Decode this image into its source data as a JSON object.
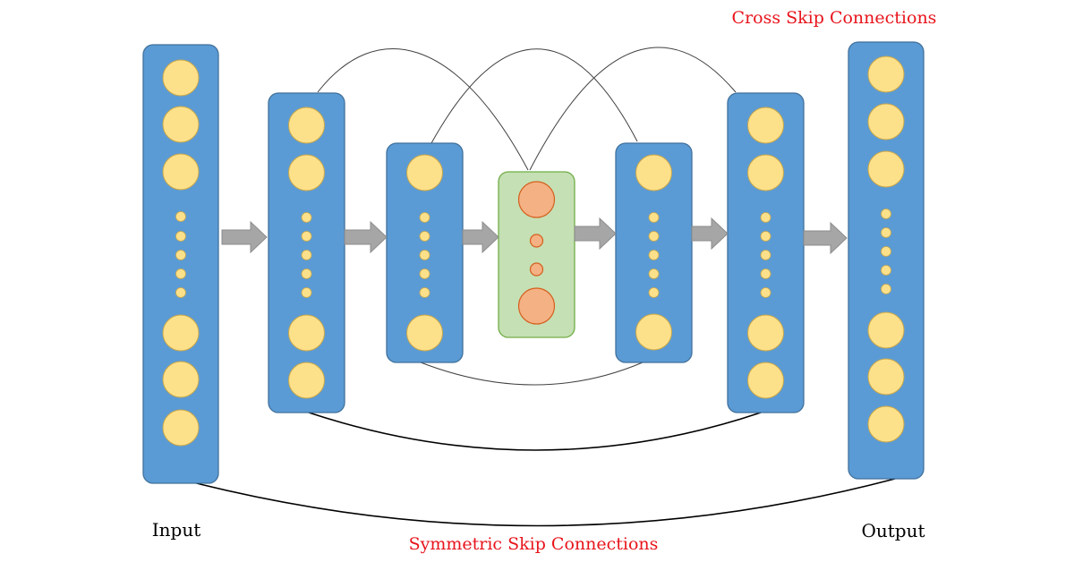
{
  "labels": {
    "cross": "Cross Skip Connections",
    "symmetric": "Symmetric Skip Connections",
    "input": "Input",
    "output": "Output"
  },
  "colors": {
    "layer_fill": "#5b9bd5",
    "layer_stroke": "#41719c",
    "node_fill": "#fde08a",
    "node_stroke": "#c9a84a",
    "bottleneck_fill": "#c5e0b4",
    "bottleneck_stroke": "#70ad47",
    "bottleneck_node_fill": "#f4b183",
    "bottleneck_node_stroke": "#d55f1f",
    "arrow_fill": "#a6a6a6",
    "label_red": "#e8141c"
  },
  "icons": {
    "flow": "arrow-right-icon",
    "neuron": "circle-node-icon"
  }
}
